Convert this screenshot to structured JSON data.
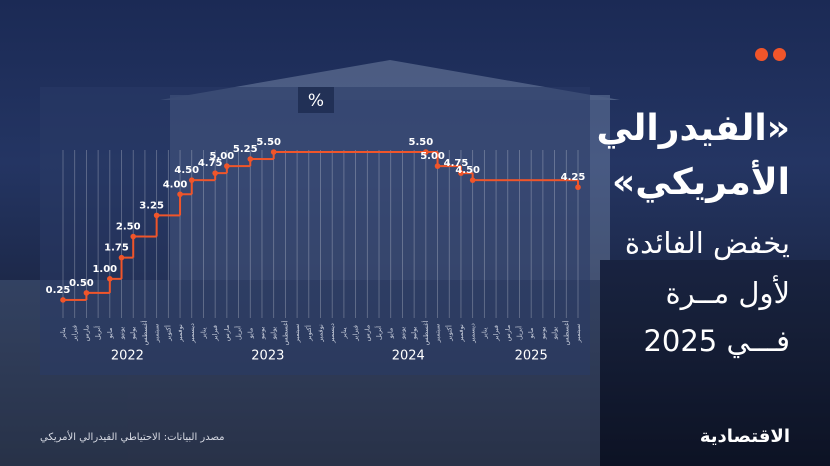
{
  "headline": [
    "«الفيدرالي",
    "الأمريكي»",
    "يخفض الفائدة",
    "لأول مــرة",
    "فـــي 2025"
  ],
  "source": "مصدر البيانات: الاحتياطي الفيدرالي الأمريكي",
  "brand": "الاقتصادية",
  "chart_data": {
    "type": "step",
    "ylabel": "%",
    "color": "#f0552a",
    "categories": [
      "يناير",
      "فبراير",
      "مارس",
      "أبريل",
      "مايو",
      "يونيو",
      "يوليو",
      "أغسطس",
      "سبتمبر",
      "أكتوبر",
      "نوفمبر",
      "ديسمبر",
      "يناير",
      "فبراير",
      "مارس",
      "أبريل",
      "مايو",
      "يونيو",
      "يوليو",
      "أغسطس",
      "سبتمبر",
      "أكتوبر",
      "نوفمبر",
      "ديسمبر",
      "يناير",
      "فبراير",
      "مارس",
      "أبريل",
      "مايو",
      "يونيو",
      "يوليو",
      "أغسطس",
      "سبتمبر",
      "أكتوبر",
      "نوفمبر",
      "ديسمبر",
      "يناير",
      "فبراير",
      "مارس",
      "أبريل",
      "مايو",
      "يونيو",
      "يوليو",
      "أغسطس",
      "سبتمبر"
    ],
    "year_labels": [
      2022,
      2023,
      2024,
      2025
    ],
    "values": [
      0.25,
      0.25,
      0.5,
      0.5,
      1,
      1.75,
      2.5,
      2.5,
      3.25,
      3.25,
      4,
      4.5,
      4.5,
      4.75,
      5,
      5,
      5.25,
      5.25,
      5.5,
      5.5,
      5.5,
      5.5,
      5.5,
      5.5,
      5.5,
      5.5,
      5.5,
      5.5,
      5.5,
      5.5,
      5.5,
      5.5,
      5,
      5,
      4.75,
      4.5,
      4.5,
      4.5,
      4.5,
      4.5,
      4.5,
      4.5,
      4.5,
      4.5,
      4.25
    ],
    "value_labels": [
      "0.25",
      null,
      "0.50",
      null,
      "1.00",
      "1.75",
      "2.50",
      null,
      "3.25",
      null,
      "4.00",
      "4.50",
      null,
      "4.75",
      "5.00",
      null,
      "5.25",
      null,
      "5.50",
      null,
      null,
      null,
      null,
      null,
      null,
      null,
      null,
      null,
      null,
      null,
      null,
      "5.50",
      "5.00",
      null,
      "4.75",
      "4.50",
      null,
      null,
      null,
      null,
      null,
      null,
      null,
      null,
      "4.25"
    ],
    "ylim": [
      0,
      5.5
    ]
  }
}
